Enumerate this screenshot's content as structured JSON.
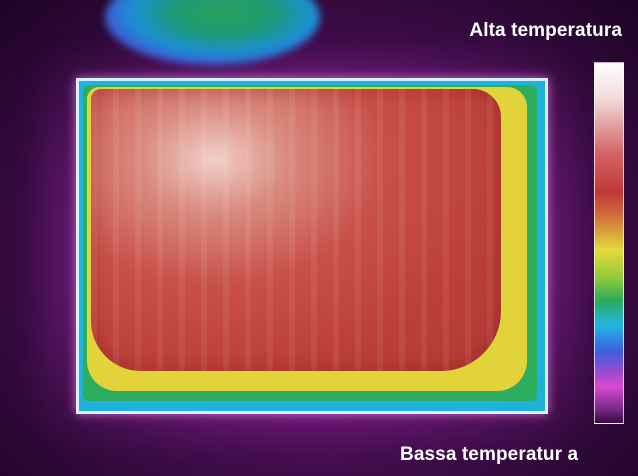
{
  "labels": {
    "high": "Alta temperatura",
    "low": "Bassa temperatur a"
  },
  "colors": {
    "background": "#4a0f55",
    "object_hot": "#c03838",
    "scale_top": "#ffffff",
    "scale_bottom": "#3a0a44"
  }
}
